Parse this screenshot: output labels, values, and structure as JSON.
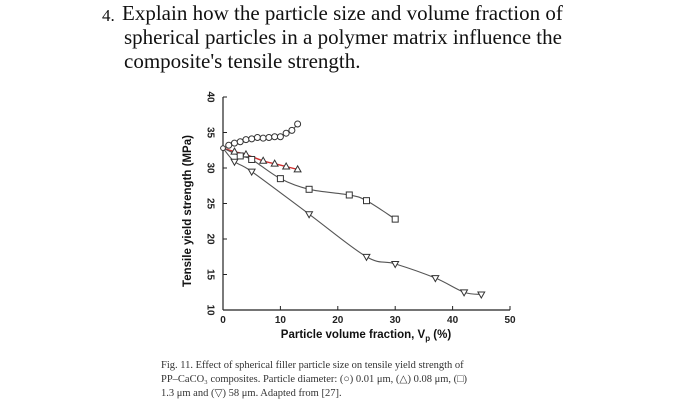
{
  "question": {
    "number": "4.",
    "lines": [
      "Explain how the particle size and volume fraction of",
      "spherical particles in a polymer matrix influence the",
      "composite's tensile strength."
    ]
  },
  "chart_data": {
    "type": "line",
    "xlabel": "Particle volume fraction, V",
    "xlabel_sub": "p",
    "xlabel_unit": " (%)",
    "ylabel": "Tensile yield strength (MPa)",
    "xlim": [
      0,
      50
    ],
    "ylim": [
      10,
      40
    ],
    "x_ticks": [
      "0",
      "10",
      "20",
      "30",
      "40",
      "50"
    ],
    "y_ticks": [
      "10",
      "15",
      "20",
      "25",
      "30",
      "35",
      "40"
    ],
    "grid": false,
    "series": [
      {
        "marker": "circle",
        "x": [
          0,
          1,
          2,
          3,
          4,
          5,
          6,
          7,
          8,
          9,
          10,
          11,
          12,
          13
        ],
        "y": [
          32.8,
          33.2,
          33.5,
          33.7,
          34.0,
          34.1,
          34.3,
          34.2,
          34.3,
          34.4,
          34.4,
          34.9,
          35.3,
          36.2
        ],
        "curve_color": "#555555"
      },
      {
        "marker": "triangle",
        "x": [
          0,
          2,
          4,
          7,
          9,
          11,
          13
        ],
        "y": [
          32.8,
          32.3,
          31.9,
          31.0,
          30.6,
          30.2,
          29.8
        ],
        "curve_color": "#d03030"
      },
      {
        "marker": "square",
        "x": [
          0,
          3,
          5,
          10,
          15,
          22,
          25,
          30
        ],
        "y": [
          32.8,
          31.7,
          31.2,
          28.5,
          27.0,
          26.2,
          25.4,
          22.8
        ],
        "curve_color": "#555555"
      },
      {
        "marker": "inverted-triangle",
        "x": [
          0,
          2,
          5,
          15,
          25,
          30,
          37,
          42,
          45
        ],
        "y": [
          32.8,
          30.9,
          29.5,
          23.5,
          17.5,
          16.5,
          14.5,
          12.5,
          12.2
        ],
        "curve_color": "#555555"
      }
    ]
  },
  "caption": {
    "lines": [
      "Fig. 11. Effect of spherical filler particle size on tensile yield strength of",
      "PP–CaCO₃ composites. Particle diameter: (○) 0.01 μm, (△) 0.08 μm, (□)",
      "1.3 μm and (▽) 58 μm. Adapted from [27]."
    ]
  }
}
